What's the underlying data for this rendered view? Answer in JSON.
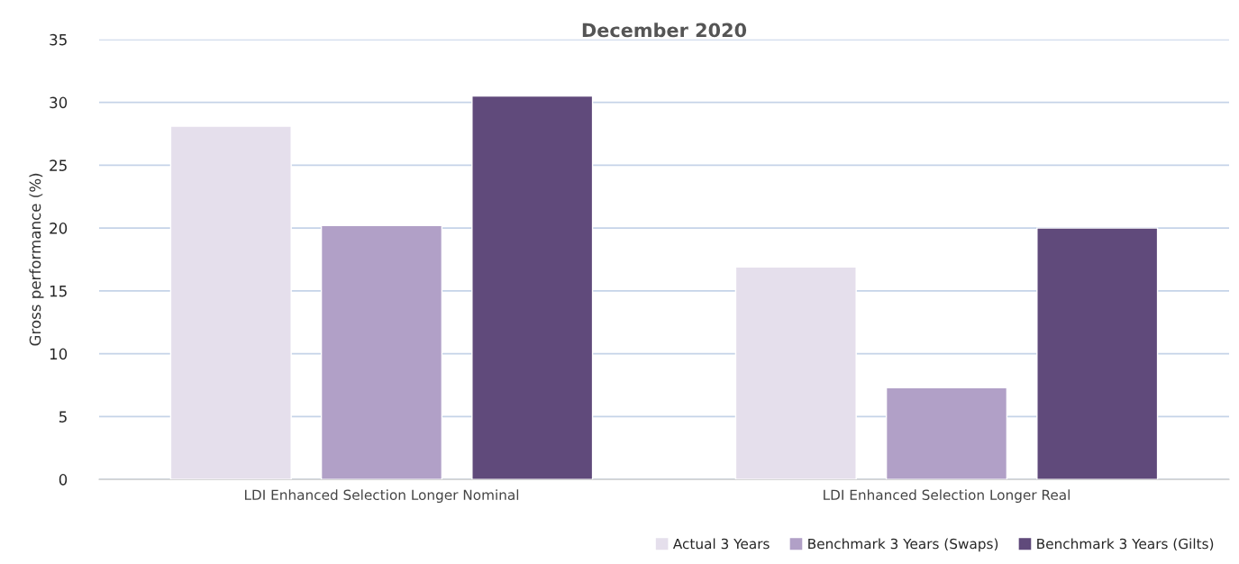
{
  "chart_data": {
    "type": "bar",
    "title": "December 2020",
    "ylabel": "Gross performance (%)",
    "categories": [
      "LDI Enhanced Selection Longer Nominal",
      "LDI Enhanced Selection Longer Real"
    ],
    "series": [
      {
        "name": "Actual 3 Years",
        "color": "#e5dfec",
        "values": [
          28.1,
          16.9
        ]
      },
      {
        "name": "Benchmark 3 Years (Swaps)",
        "color": "#b1a0c7",
        "values": [
          20.2,
          7.3
        ]
      },
      {
        "name": "Benchmark 3 Years (Gilts)",
        "color": "#604a7b",
        "values": [
          30.5,
          20.0
        ]
      }
    ],
    "ylim": [
      0,
      35
    ],
    "yticks": [
      0,
      5,
      10,
      15,
      20,
      25,
      30,
      35
    ],
    "grid": "y",
    "legend": "bottom right"
  }
}
